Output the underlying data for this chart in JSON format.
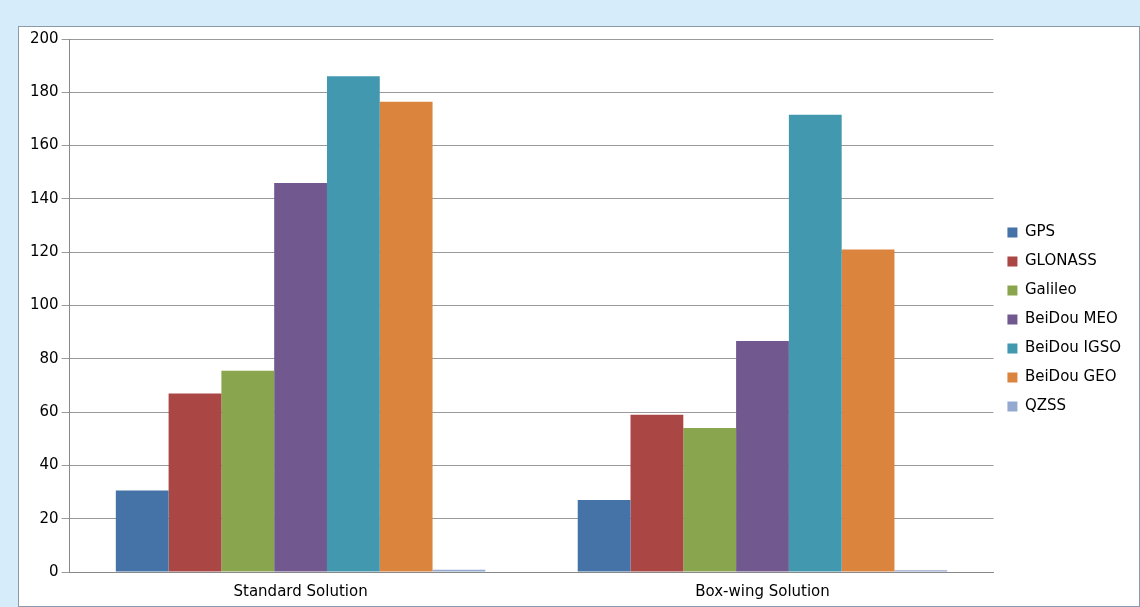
{
  "chart_data": {
    "type": "bar",
    "categories": [
      "Standard Solution",
      "Box-wing Solution"
    ],
    "series": [
      {
        "name": "GPS",
        "color": "#4572a7",
        "values": [
          30.6,
          27
        ]
      },
      {
        "name": "GLONASS",
        "color": "#aa4643",
        "values": [
          67,
          59
        ]
      },
      {
        "name": "Galileo",
        "color": "#89a54e",
        "values": [
          75.5,
          54
        ]
      },
      {
        "name": "BeiDou MEO",
        "color": "#71588f",
        "values": [
          146,
          86.7
        ]
      },
      {
        "name": "BeiDou IGSO",
        "color": "#4198af",
        "values": [
          186,
          171.6
        ]
      },
      {
        "name": "BeiDou GEO",
        "color": "#db843d",
        "values": [
          176.5,
          121
        ]
      },
      {
        "name": "QZSS",
        "color": "#93a9cf",
        "values": [
          0.8,
          0.7
        ]
      }
    ],
    "ylim": [
      0,
      200
    ],
    "yticks": [
      0,
      20,
      40,
      60,
      80,
      100,
      120,
      140,
      160,
      180,
      200
    ],
    "grid": "y",
    "legend": "right"
  }
}
